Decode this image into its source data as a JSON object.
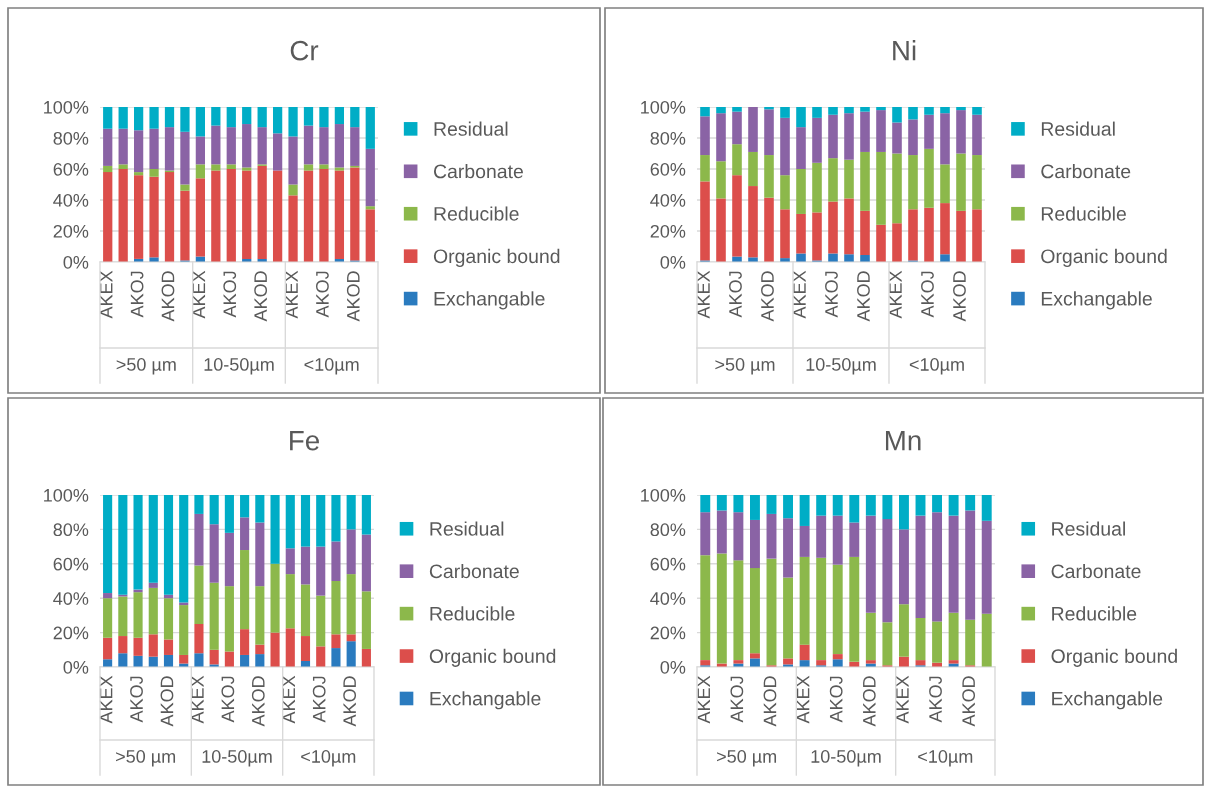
{
  "chart_data": [
    {
      "type": "bar",
      "title": "Cr",
      "stacked": true,
      "categories": [
        "AKEX",
        null,
        "AKOJ",
        null,
        "AKOD",
        null,
        "AKEX",
        null,
        "AKOJ",
        null,
        "AKOD",
        null,
        "AKEX",
        null,
        "AKOJ",
        null,
        "AKOD",
        null
      ],
      "series": [
        {
          "name": "Exchangable",
          "color": "#2a7bbf",
          "values": [
            0,
            0,
            2,
            3,
            0,
            1,
            3.5,
            0,
            0,
            2,
            2,
            0,
            0,
            0,
            0,
            2,
            1,
            0
          ]
        },
        {
          "name": "Organic bound",
          "color": "#dc4e4b",
          "values": [
            58,
            60,
            54,
            52,
            58,
            45,
            50.5,
            59,
            60,
            57,
            60,
            59,
            43,
            59,
            60,
            57,
            60,
            34
          ]
        },
        {
          "name": "Reducible",
          "color": "#8cb84b",
          "values": [
            4,
            3,
            2,
            5,
            1,
            4,
            9,
            4,
            3,
            2,
            1,
            0,
            7,
            4,
            3,
            2,
            1,
            2
          ]
        },
        {
          "name": "Carbonate",
          "color": "#8a63a5",
          "values": [
            24,
            23,
            27,
            26,
            28,
            34,
            18,
            25,
            24,
            28,
            24,
            24,
            31,
            25,
            24,
            28,
            25,
            37
          ]
        },
        {
          "name": "Residual",
          "color": "#00adc6",
          "values": [
            14,
            14,
            15,
            14,
            13,
            16,
            19,
            12,
            13,
            11,
            13,
            17,
            19,
            12,
            13,
            11,
            13,
            27
          ]
        }
      ],
      "ylim": [
        0,
        100
      ],
      "yticks": [
        {
          "value": 0,
          "label": "0%"
        },
        {
          "value": 20,
          "label": "20%"
        },
        {
          "value": 40,
          "label": "40%"
        },
        {
          "value": 60,
          "label": "60%"
        },
        {
          "value": 80,
          "label": "80%"
        },
        {
          "value": 100,
          "label": "100%"
        }
      ],
      "grid": "y",
      "legend": "right",
      "annotations": [
        ">50 µm",
        "10-50µm",
        "<10µm"
      ]
    },
    {
      "type": "bar",
      "title": "Ni",
      "stacked": true,
      "categories": [
        "AKEX",
        null,
        "AKOJ",
        null,
        "AKOD",
        null,
        "AKEX",
        null,
        "AKOJ",
        null,
        "AKOD",
        null,
        "AKEX",
        null,
        "AKOJ",
        null,
        "AKOD",
        null
      ],
      "series": [
        {
          "name": "Exchangable",
          "color": "#2a7bbf",
          "values": [
            1,
            0,
            3.5,
            3,
            0,
            2.5,
            5.5,
            1,
            5.5,
            5,
            4.5,
            0,
            0,
            1,
            0,
            5,
            0,
            0
          ]
        },
        {
          "name": "Organic bound",
          "color": "#dc4e4b",
          "values": [
            51,
            41,
            52.5,
            46,
            41.5,
            31.5,
            25.5,
            31,
            33.5,
            36,
            28.5,
            24,
            25,
            33,
            35,
            33,
            33,
            34
          ]
        },
        {
          "name": "Reducible",
          "color": "#8cb84b",
          "values": [
            17,
            24,
            20,
            22,
            27.5,
            22,
            29,
            32,
            28,
            25,
            38,
            47,
            45,
            35,
            38,
            25,
            37,
            35
          ]
        },
        {
          "name": "Carbonate",
          "color": "#8a63a5",
          "values": [
            25,
            31,
            21,
            29,
            29.5,
            37,
            27,
            29,
            28,
            30,
            26,
            27,
            20,
            23,
            22,
            33,
            28,
            26
          ]
        },
        {
          "name": "Residual",
          "color": "#00adc6",
          "values": [
            6,
            4,
            3,
            0,
            1.5,
            7,
            13,
            7,
            5,
            4,
            3,
            2,
            10,
            8,
            5,
            4,
            2,
            5
          ]
        }
      ],
      "ylim": [
        0,
        100
      ],
      "yticks": [
        {
          "value": 0,
          "label": "0%"
        },
        {
          "value": 20,
          "label": "20%"
        },
        {
          "value": 40,
          "label": "40%"
        },
        {
          "value": 60,
          "label": "60%"
        },
        {
          "value": 80,
          "label": "80%"
        },
        {
          "value": 100,
          "label": "100%"
        }
      ],
      "grid": "y",
      "legend": "right",
      "annotations": [
        ">50 µm",
        "10-50µm",
        "<10µm"
      ]
    },
    {
      "type": "bar",
      "title": "Fe",
      "stacked": true,
      "categories": [
        "AKEX",
        null,
        "AKOJ",
        null,
        "AKOD",
        null,
        "AKEX",
        null,
        "AKOJ",
        null,
        "AKOD",
        null,
        "AKEX",
        null,
        "AKOJ",
        null,
        "AKOD",
        null
      ],
      "series": [
        {
          "name": "Exchangable",
          "color": "#2a7bbf",
          "values": [
            4.5,
            8,
            6.5,
            6,
            7,
            2,
            8,
            1.5,
            0,
            7,
            7.5,
            0,
            0,
            3.5,
            0,
            11,
            15,
            0
          ]
        },
        {
          "name": "Organic bound",
          "color": "#dc4e4b",
          "values": [
            12.5,
            10,
            10.5,
            13,
            9,
            5,
            17,
            8.5,
            9,
            15,
            5.5,
            20,
            22.5,
            14.5,
            12,
            8,
            4,
            10.5
          ]
        },
        {
          "name": "Reducible",
          "color": "#8cb84b",
          "values": [
            23,
            23,
            26.5,
            27,
            24,
            29,
            34,
            39,
            38,
            46,
            34,
            40,
            31.5,
            30,
            29.5,
            31,
            35,
            33.5
          ]
        },
        {
          "name": "Carbonate",
          "color": "#8a63a5",
          "values": [
            3,
            1,
            1.5,
            3,
            2,
            1.5,
            30,
            34,
            31,
            19,
            37,
            0,
            15,
            22,
            28.5,
            23,
            26,
            33
          ]
        },
        {
          "name": "Residual",
          "color": "#00adc6",
          "values": [
            57,
            58,
            55,
            51,
            58,
            62.5,
            11,
            17,
            22,
            13,
            16,
            40,
            31,
            30,
            30,
            27,
            20,
            23
          ]
        }
      ],
      "ylim": [
        0,
        100
      ],
      "yticks": [
        {
          "value": 0,
          "label": "0%"
        },
        {
          "value": 20,
          "label": "20%"
        },
        {
          "value": 40,
          "label": "40%"
        },
        {
          "value": 60,
          "label": "60%"
        },
        {
          "value": 80,
          "label": "80%"
        },
        {
          "value": 100,
          "label": "100%"
        }
      ],
      "grid": "y",
      "legend": "right",
      "annotations": [
        ">50 µm",
        "10-50µm",
        "<10µm"
      ]
    },
    {
      "type": "bar",
      "title": "Mn",
      "stacked": true,
      "categories": [
        "AKEX",
        null,
        "AKOJ",
        null,
        "AKOD",
        null,
        "AKEX",
        null,
        "AKOJ",
        null,
        "AKOD",
        null,
        "AKEX",
        null,
        "AKOJ",
        null,
        "AKOD",
        null
      ],
      "series": [
        {
          "name": "Exchangable",
          "color": "#2a7bbf",
          "values": [
            1,
            0,
            2,
            5,
            0,
            1.5,
            4,
            1,
            4.5,
            0,
            2,
            0,
            0,
            1,
            0,
            2,
            0,
            0
          ]
        },
        {
          "name": "Organic bound",
          "color": "#dc4e4b",
          "values": [
            3,
            2,
            2,
            3,
            1,
            3.5,
            9,
            3,
            3,
            3,
            2,
            1,
            6,
            3,
            2.5,
            2,
            1,
            0
          ]
        },
        {
          "name": "Reducible",
          "color": "#8cb84b",
          "values": [
            61,
            64,
            58,
            49.5,
            62,
            47,
            51,
            59.5,
            52,
            61,
            27.5,
            25,
            30.5,
            24.5,
            24,
            27.5,
            26.5,
            31
          ]
        },
        {
          "name": "Carbonate",
          "color": "#8a63a5",
          "values": [
            25,
            25,
            28,
            28,
            26,
            34.5,
            18,
            24.5,
            28.5,
            20,
            56.5,
            60,
            43.5,
            59.5,
            63.5,
            56.5,
            63.5,
            54
          ]
        },
        {
          "name": "Residual",
          "color": "#00adc6",
          "values": [
            10,
            9,
            10,
            14.5,
            11,
            13.5,
            18,
            12,
            12,
            16,
            12,
            14,
            20,
            12,
            10,
            12,
            9,
            15
          ]
        }
      ],
      "ylim": [
        0,
        100
      ],
      "yticks": [
        {
          "value": 0,
          "label": "0%"
        },
        {
          "value": 20,
          "label": "20%"
        },
        {
          "value": 40,
          "label": "40%"
        },
        {
          "value": 60,
          "label": "60%"
        },
        {
          "value": 80,
          "label": "80%"
        },
        {
          "value": 100,
          "label": "100%"
        }
      ],
      "grid": "y",
      "legend": "right",
      "annotations": [
        ">50 µm",
        "10-50µm",
        "<10µm"
      ]
    }
  ]
}
